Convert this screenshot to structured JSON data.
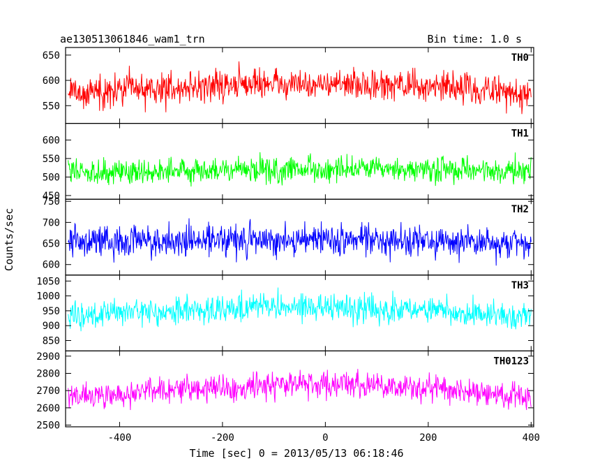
{
  "title_left": "ae130513061846_wam1_trn",
  "title_right": "Bin time: 1.0 s",
  "xlabel": "Time [sec] 0 = 2013/05/13 06:18:46",
  "ylabel": "Counts/sec",
  "chart_data": {
    "type": "line",
    "xlim": [
      -505,
      405
    ],
    "x_ticks": [
      -400,
      -200,
      0,
      200,
      400
    ],
    "x_range_data": [
      -500,
      400
    ],
    "bin_seconds": 1.0,
    "grid": false,
    "legend": "none",
    "series": [
      {
        "name": "TH0",
        "color": "#ff0000",
        "ylim": [
          515,
          665
        ],
        "y_ticks": [
          550,
          600,
          650
        ],
        "mean_profile": [
          [
            -500,
            575
          ],
          [
            -300,
            585
          ],
          [
            -100,
            595
          ],
          [
            0,
            592
          ],
          [
            200,
            588
          ],
          [
            400,
            575
          ]
        ],
        "amplitude": 22
      },
      {
        "name": "TH1",
        "color": "#00ff00",
        "ylim": [
          440,
          645
        ],
        "y_ticks": [
          450,
          500,
          550,
          600
        ],
        "mean_profile": [
          [
            -500,
            515
          ],
          [
            -200,
            518
          ],
          [
            0,
            520
          ],
          [
            200,
            518
          ],
          [
            400,
            515
          ]
        ],
        "amplitude": 25
      },
      {
        "name": "TH2",
        "color": "#0000ff",
        "ylim": [
          575,
          755
        ],
        "y_ticks": [
          600,
          650,
          700,
          750
        ],
        "mean_profile": [
          [
            -500,
            655
          ],
          [
            -200,
            658
          ],
          [
            0,
            660
          ],
          [
            200,
            655
          ],
          [
            400,
            650
          ]
        ],
        "amplitude": 27
      },
      {
        "name": "TH3",
        "color": "#00ffff",
        "ylim": [
          815,
          1070
        ],
        "y_ticks": [
          850,
          900,
          950,
          1000,
          1050
        ],
        "mean_profile": [
          [
            -500,
            930
          ],
          [
            -300,
            950
          ],
          [
            -100,
            965
          ],
          [
            0,
            958
          ],
          [
            200,
            950
          ],
          [
            400,
            935
          ]
        ],
        "amplitude": 32
      },
      {
        "name": "TH0123",
        "color": "#ff00ff",
        "ylim": [
          2490,
          2930
        ],
        "y_ticks": [
          2500,
          2600,
          2700,
          2800,
          2900
        ],
        "mean_profile": [
          [
            -500,
            2660
          ],
          [
            -300,
            2700
          ],
          [
            -100,
            2740
          ],
          [
            0,
            2735
          ],
          [
            200,
            2715
          ],
          [
            400,
            2660
          ]
        ],
        "amplitude": 55
      }
    ]
  }
}
